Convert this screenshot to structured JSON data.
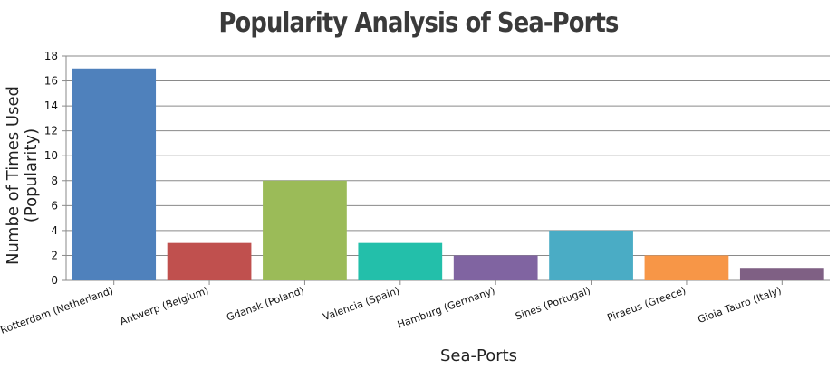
{
  "chart_data": {
    "type": "bar",
    "title": "Popularity Analysis of Sea-Ports",
    "xlabel": "Sea-Ports",
    "ylabel_lines": [
      "Numbe of Times Used",
      "(Popularity)"
    ],
    "ylim": [
      0,
      18
    ],
    "yticks": [
      0,
      2,
      4,
      6,
      8,
      10,
      12,
      14,
      16,
      18
    ],
    "grid": true,
    "categories": [
      "Rotterdam (Netherland)",
      "Antwerp (Belgium)",
      "Gdansk (Poland)",
      "Valencia (Spain)",
      "Hamburg (Germany)",
      "Sines (Portugal)",
      "Piraeus (Greece)",
      "Gioia Tauro (Italy)"
    ],
    "values": [
      17,
      3,
      8,
      3,
      2,
      4,
      2,
      1
    ],
    "colors": [
      "#4f81bc",
      "#c0504e",
      "#9bbb58",
      "#23bfaa",
      "#8064a1",
      "#4aacc5",
      "#f79647",
      "#7f6084"
    ]
  }
}
